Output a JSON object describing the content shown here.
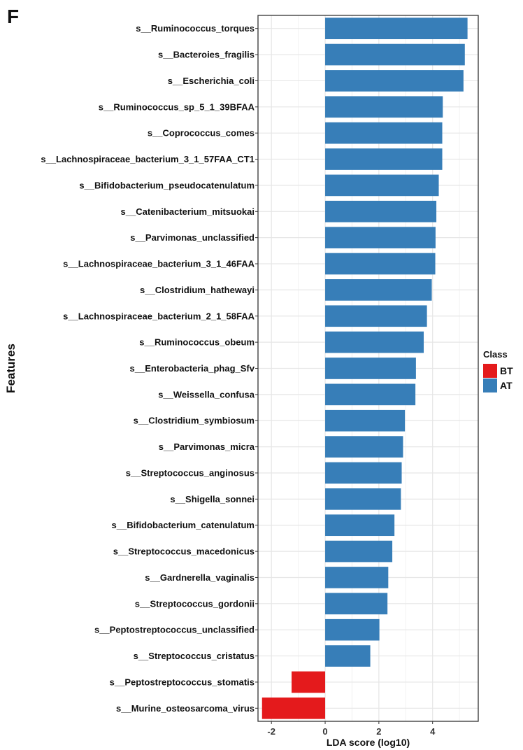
{
  "panel_label": "F",
  "chart_data": {
    "type": "bar",
    "orientation": "horizontal",
    "xlabel": "LDA score (log10)",
    "ylabel": "Features",
    "xlim": [
      -2.5,
      5.7
    ],
    "x_ticks": [
      -2,
      0,
      2,
      4
    ],
    "grid": true,
    "legend": {
      "title": "Class",
      "placement": "right",
      "entries": [
        {
          "label": "BT",
          "color": "#E41A1C"
        },
        {
          "label": "AT",
          "color": "#377EB8"
        }
      ]
    },
    "categories": [
      "s__Ruminococcus_torques",
      "s__Bacteroies_fragilis",
      "s__Escherichia_coli",
      "s__Ruminococcus_sp_5_1_39BFAA",
      "s__Coprococcus_comes",
      "s__Lachnospiraceae_bacterium_3_1_57FAA_CT1",
      "s__Bifidobacterium_pseudocatenulatum",
      "s__Catenibacterium_mitsuokai",
      "s__Parvimonas_unclassified",
      "s__Lachnospiraceae_bacterium_3_1_46FAA",
      "s__Clostridium_hathewayi",
      "s__Lachnospiraceae_bacterium_2_1_58FAA",
      "s__Ruminococcus_obeum",
      "s__Enterobacteria_phag_Sfv",
      "s__Weissella_confusa",
      "s__Clostridium_symbiosum",
      "s__Parvimonas_micra",
      "s__Streptococcus_anginosus",
      "s__Shigella_sonnei",
      "s__Bifidobacterium_catenulatum",
      "s__Streptococcus_macedonicus",
      "s__Gardnerella_vaginalis",
      "s__Streptococcus_gordonii",
      "s__Peptostreptococcus_unclassified",
      "s__Streptococcus_cristatus",
      "s__Peptostreptococcus_stomatis",
      "s__Murine_osteosarcoma_virus"
    ],
    "values": [
      5.3,
      5.2,
      5.15,
      4.38,
      4.36,
      4.36,
      4.23,
      4.14,
      4.11,
      4.1,
      3.97,
      3.79,
      3.67,
      3.38,
      3.36,
      2.97,
      2.9,
      2.85,
      2.82,
      2.58,
      2.5,
      2.35,
      2.32,
      2.02,
      1.68,
      -1.25,
      -2.35
    ],
    "classes": [
      "AT",
      "AT",
      "AT",
      "AT",
      "AT",
      "AT",
      "AT",
      "AT",
      "AT",
      "AT",
      "AT",
      "AT",
      "AT",
      "AT",
      "AT",
      "AT",
      "AT",
      "AT",
      "AT",
      "AT",
      "AT",
      "AT",
      "AT",
      "AT",
      "AT",
      "BT",
      "BT"
    ]
  }
}
